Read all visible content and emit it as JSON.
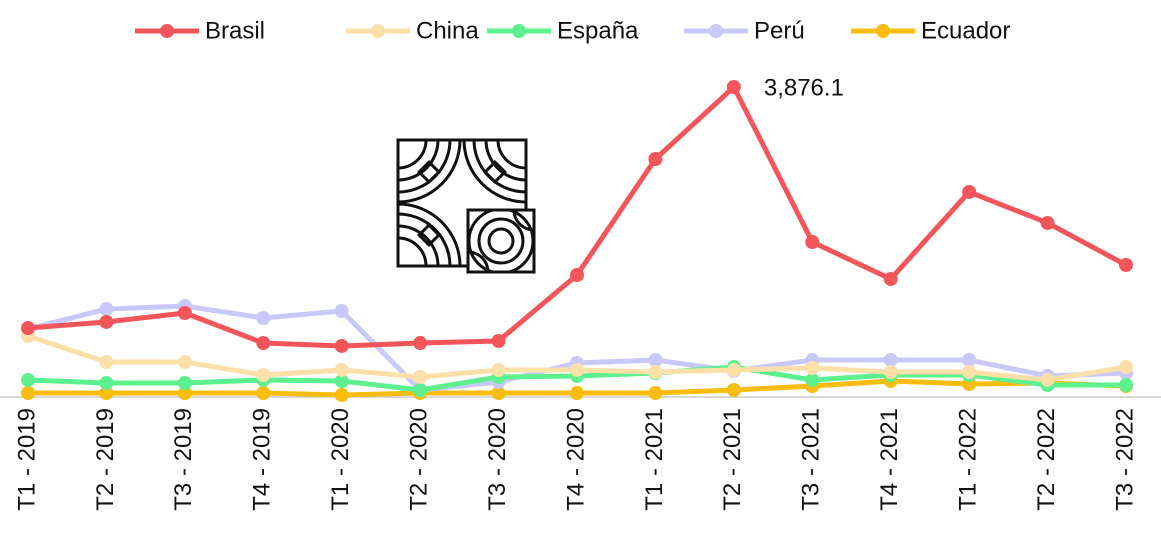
{
  "chart_data": {
    "type": "line",
    "categories": [
      "T1 - 2019",
      "T2 - 2019",
      "T3 - 2019",
      "T4 - 2019",
      "T1 - 2020",
      "T2 - 2020",
      "T3 - 2020",
      "T4 - 2020",
      "T1 - 2021",
      "T2 - 2021",
      "T3 - 2021",
      "T4 - 2021",
      "T1 - 2022",
      "T2 - 2022",
      "T3 - 2022"
    ],
    "series": [
      {
        "name": "Brasil",
        "color": "#f4555a",
        "values": [
          843,
          919,
          1032,
          654,
          617,
          654,
          680,
          1510,
          2970,
          3876.1,
          1925,
          1460,
          2555,
          2165,
          1636
        ],
        "value_labels": [
          null,
          null,
          null,
          null,
          null,
          null,
          null,
          null,
          null,
          "3,876.1",
          null,
          null,
          null,
          null,
          null
        ]
      },
      {
        "name": "China",
        "color": "#fde0a8",
        "values": [
          742,
          415,
          415,
          252,
          315,
          227,
          315,
          315,
          289,
          315,
          340,
          289,
          289,
          189,
          352
        ]
      },
      {
        "name": "España",
        "color": "#5cf08f",
        "values": [
          189,
          151,
          151,
          189,
          176,
          63,
          227,
          239,
          277,
          352,
          189,
          252,
          252,
          126,
          126
        ]
      },
      {
        "name": "Perú",
        "color": "#c8c8fa",
        "values": [
          831,
          1082,
          1120,
          969,
          1057,
          63,
          164,
          403,
          440,
          302,
          440,
          440,
          440,
          239,
          277
        ]
      },
      {
        "name": "Ecuador",
        "color": "#f9bd10",
        "values": [
          25,
          25,
          25,
          25,
          0,
          25,
          25,
          25,
          25,
          63,
          113,
          176,
          138,
          151,
          113
        ]
      }
    ],
    "legend": "top"
  }
}
